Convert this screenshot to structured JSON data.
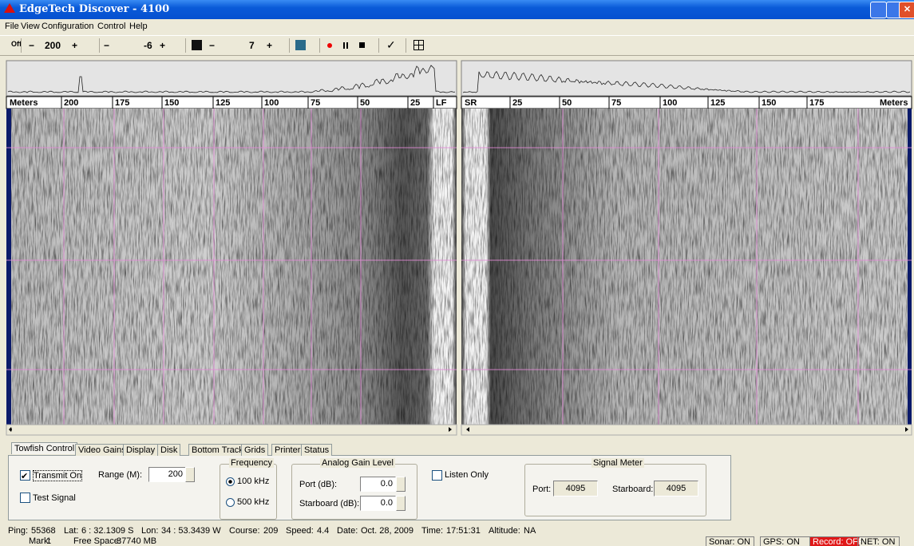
{
  "window": {
    "title": "EdgeTech Discover - 4100"
  },
  "menu": [
    "File",
    "View",
    "Configuration",
    "Control",
    "Help"
  ],
  "toolbar": {
    "power": "Off",
    "minus": "−",
    "plus": "+",
    "range": "200",
    "gain": "-6",
    "tvg": "7"
  },
  "port_scale": [
    "Meters",
    "200",
    "175",
    "150",
    "125",
    "100",
    "75",
    "50",
    "25",
    "LF"
  ],
  "starboard_scale": [
    "SR",
    "25",
    "50",
    "75",
    "100",
    "125",
    "150",
    "175",
    "Meters"
  ],
  "tabs": [
    "Towfish Control",
    "Video Gains",
    "Display",
    "Disk",
    "Bottom Track",
    "Grids",
    "Printer",
    "Status"
  ],
  "towfish_control": {
    "transmit_on": "Transmit On",
    "test_signal": "Test Signal",
    "range_label": "Range (M):",
    "range_value": "200",
    "frequency": {
      "title": "Frequency",
      "options": [
        "100 kHz",
        "500 kHz"
      ]
    },
    "analog_gain": {
      "title": "Analog Gain Level",
      "port_label": "Port (dB):",
      "port_value": "0.0",
      "starboard_label": "Starboard (dB):",
      "starboard_value": "0.0"
    },
    "listen_only": "Listen Only",
    "signal_meter": {
      "title": "Signal Meter",
      "port_label": "Port:",
      "port_value": "4095",
      "starboard_label": "Starboard:",
      "starboard_value": "4095"
    }
  },
  "status_line": [
    [
      "Ping:",
      "55368"
    ],
    [
      "Lat:",
      "6 : 32.1309 S"
    ],
    [
      "Lon:",
      "34 : 53.3439 W"
    ],
    [
      "Course:",
      "209"
    ],
    [
      "Speed:",
      "4.4"
    ],
    [
      "Date:",
      "Oct. 28, 2009"
    ],
    [
      "Time:",
      "17:51:31"
    ],
    [
      "Altitude:",
      "NA"
    ]
  ],
  "status_line2": [
    [
      "Mark:",
      "1"
    ],
    [
      "Free Space:",
      "37740 MB"
    ]
  ],
  "indicators": [
    "Sonar: ON",
    "GPS: ON",
    "Record: OFF",
    "NET: ON"
  ]
}
